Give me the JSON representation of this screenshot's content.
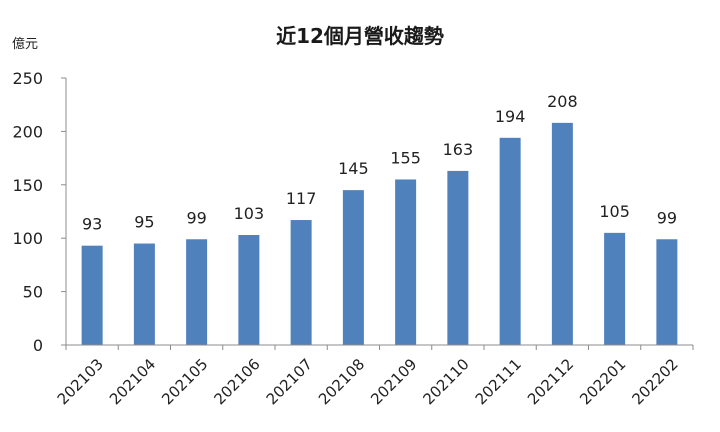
{
  "chart_data": {
    "type": "bar",
    "title": "近12個月營收趨勢",
    "ylabel": "億元",
    "xlabel": "",
    "categories": [
      "202103",
      "202104",
      "202105",
      "202106",
      "202107",
      "202108",
      "202109",
      "202110",
      "202111",
      "202112",
      "202201",
      "202202"
    ],
    "values": [
      93,
      95,
      99,
      103,
      117,
      145,
      155,
      163,
      194,
      208,
      105,
      99
    ],
    "ylim": [
      0,
      250
    ],
    "yticks": [
      0,
      50,
      100,
      150,
      200,
      250
    ],
    "grid": false,
    "legend": "none",
    "bar_color": "#4f81bd",
    "axis_color": "#8c8c8c"
  }
}
